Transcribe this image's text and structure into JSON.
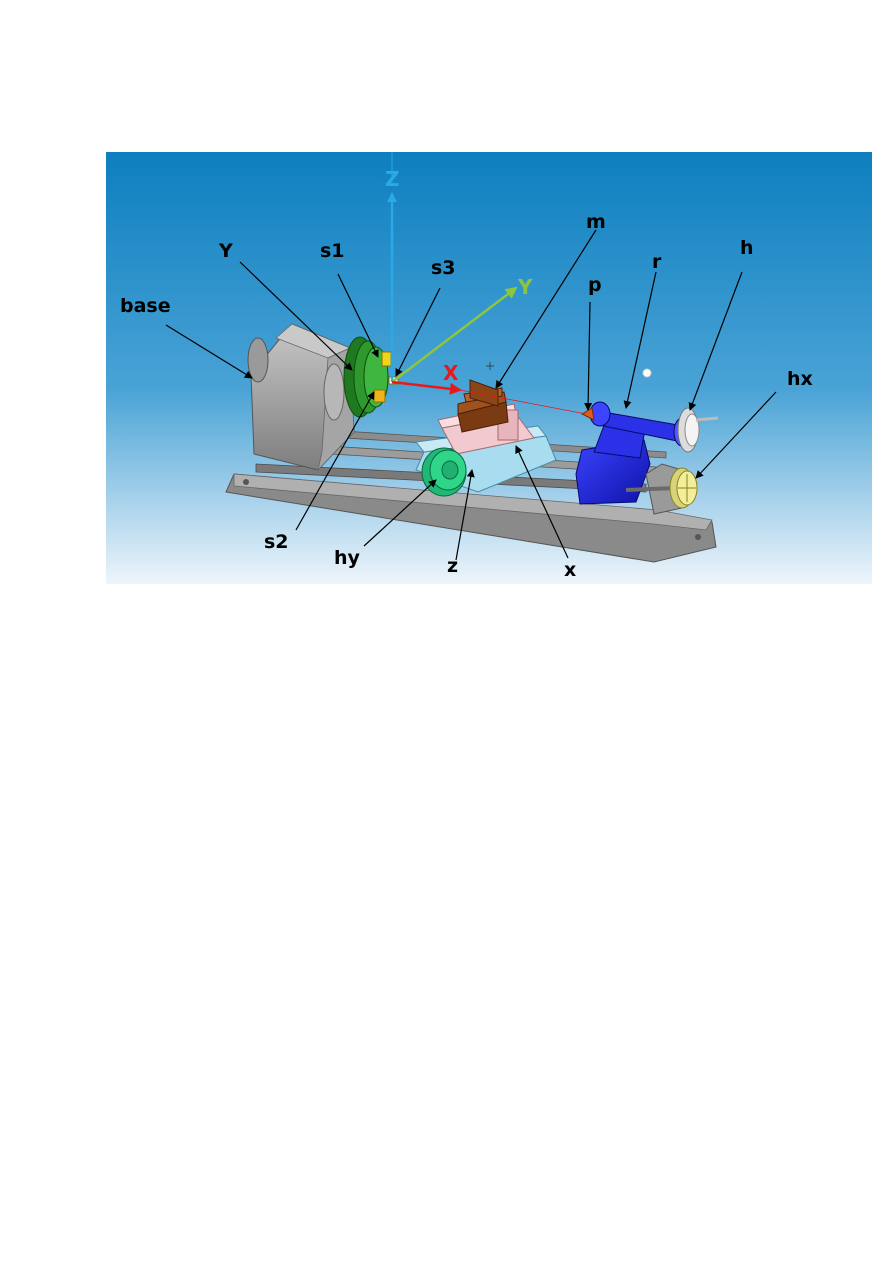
{
  "axes": {
    "z": {
      "label": "Z",
      "color": "#29a9e6"
    },
    "y": {
      "label": "Y",
      "color": "#8cc63f"
    },
    "x": {
      "label": "X",
      "color": "#e8191b"
    }
  },
  "labels": {
    "base": "base",
    "Y": "Y",
    "s1": "s1",
    "s3": "s3",
    "m": "m",
    "p": "p",
    "r": "r",
    "h": "h",
    "hx": "hx",
    "s2": "s2",
    "hy": "hy",
    "z": "z",
    "x": "x"
  },
  "colors": {
    "background_top": "#0d7fbf",
    "background_bottom": "#e6f1f9",
    "base": "#9a9a9a",
    "chuck": "#2e9a2e",
    "jaws": "#f2d21a",
    "workpiece": "#a0521e",
    "cross_slide": "#f2c9cf",
    "carriage": "#a8dcef",
    "handwheel_y": "#2fd68a",
    "tailstock": "#1a1fd6",
    "tip": "#e05a1a",
    "handwheel_h": "#f0f0f0",
    "handwheel_x": "#f2ee9a"
  }
}
